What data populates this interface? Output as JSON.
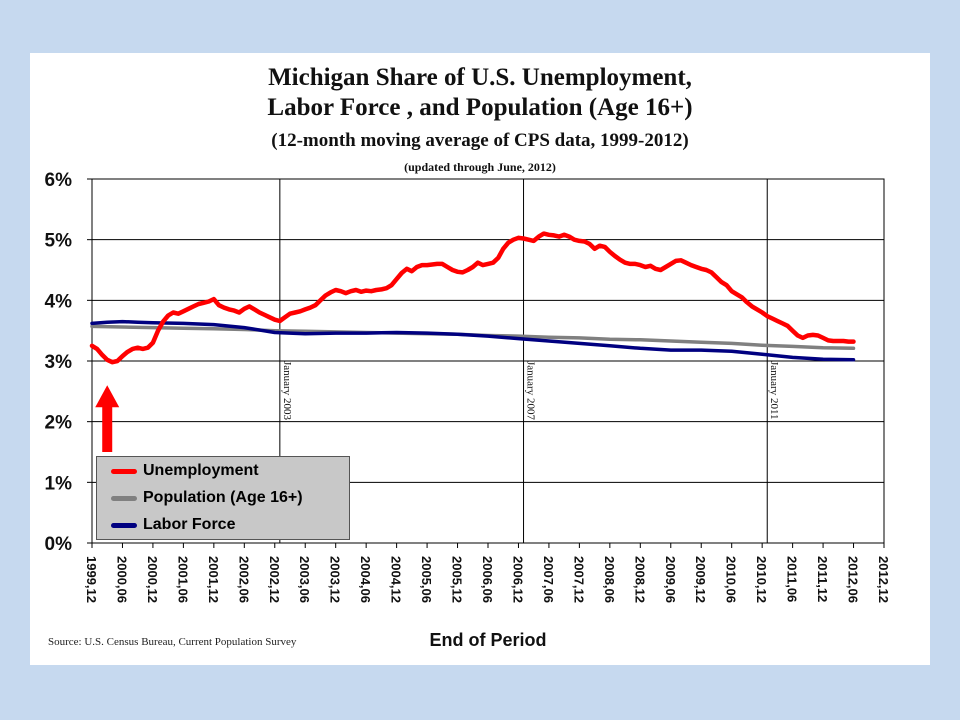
{
  "header": {
    "title_line1": "Michigan Share of U.S. Unemployment,",
    "title_line2": "Labor Force , and Population (Age 16+)",
    "subtitle": "(12-month moving average of CPS data, 1999-2012)",
    "updated": "(updated through June, 2012)"
  },
  "source": "Source: U.S. Census Bureau, Current Population Survey",
  "legend": {
    "items": [
      {
        "label": "Unemployment",
        "color": "#ff0000"
      },
      {
        "label": "Population (Age 16+)",
        "color": "#808080"
      },
      {
        "label": "Labor Force",
        "color": "#000080"
      }
    ]
  },
  "chart_data": {
    "type": "line",
    "title": "Michigan Share of U.S. Unemployment, Labor Force , and Population (Age 16+)",
    "subtitle": "(12-month moving average of CPS data, 1999-2012)",
    "xlabel": "End of Period",
    "ylabel": "",
    "ylim": [
      0,
      6
    ],
    "yticks": [
      "0%",
      "1%",
      "2%",
      "3%",
      "4%",
      "5%",
      "6%"
    ],
    "xticks": [
      "1999,12",
      "2000,06",
      "2000,12",
      "2001,06",
      "2001,12",
      "2002,06",
      "2002,12",
      "2003,06",
      "2003,12",
      "2004,06",
      "2004,12",
      "2005,06",
      "2005,12",
      "2006,06",
      "2006,12",
      "2007,06",
      "2007,12",
      "2008,06",
      "2008,12",
      "2009,06",
      "2009,12",
      "2010,06",
      "2010,12",
      "2011,06",
      "2011,12",
      "2012,06",
      "2012,12"
    ],
    "grid": true,
    "legend_position": "bottom-left",
    "annotations": [
      {
        "label": "January 2003",
        "x": "2003,01"
      },
      {
        "label": "January 2007",
        "x": "2007,01"
      },
      {
        "label": "January 2011",
        "x": "2011,01"
      }
    ],
    "arrow": {
      "x": "2000,03",
      "y_from": 1.5,
      "y_to": 2.6,
      "color": "#ff0000"
    },
    "series": [
      {
        "name": "Unemployment",
        "color": "#ff0000",
        "points": [
          [
            "1999,12",
            3.25
          ],
          [
            "2000,01",
            3.2
          ],
          [
            "2000,02",
            3.1
          ],
          [
            "2000,03",
            3.02
          ],
          [
            "2000,04",
            2.98
          ],
          [
            "2000,05",
            3.0
          ],
          [
            "2000,06",
            3.08
          ],
          [
            "2000,07",
            3.15
          ],
          [
            "2000,08",
            3.2
          ],
          [
            "2000,09",
            3.22
          ],
          [
            "2000,10",
            3.2
          ],
          [
            "2000,11",
            3.22
          ],
          [
            "2000,12",
            3.3
          ],
          [
            "2001,01",
            3.5
          ],
          [
            "2001,02",
            3.65
          ],
          [
            "2001,03",
            3.75
          ],
          [
            "2001,04",
            3.8
          ],
          [
            "2001,05",
            3.78
          ],
          [
            "2001,06",
            3.82
          ],
          [
            "2001,07",
            3.86
          ],
          [
            "2001,08",
            3.9
          ],
          [
            "2001,09",
            3.94
          ],
          [
            "2001,10",
            3.96
          ],
          [
            "2001,11",
            3.98
          ],
          [
            "2001,12",
            4.02
          ],
          [
            "2002,01",
            3.92
          ],
          [
            "2002,02",
            3.88
          ],
          [
            "2002,03",
            3.85
          ],
          [
            "2002,04",
            3.83
          ],
          [
            "2002,05",
            3.8
          ],
          [
            "2002,06",
            3.86
          ],
          [
            "2002,07",
            3.9
          ],
          [
            "2002,08",
            3.85
          ],
          [
            "2002,09",
            3.8
          ],
          [
            "2002,10",
            3.76
          ],
          [
            "2002,11",
            3.72
          ],
          [
            "2002,12",
            3.68
          ],
          [
            "2003,01",
            3.66
          ],
          [
            "2003,02",
            3.72
          ],
          [
            "2003,03",
            3.78
          ],
          [
            "2003,04",
            3.8
          ],
          [
            "2003,05",
            3.82
          ],
          [
            "2003,06",
            3.85
          ],
          [
            "2003,07",
            3.88
          ],
          [
            "2003,08",
            3.92
          ],
          [
            "2003,09",
            4.0
          ],
          [
            "2003,10",
            4.08
          ],
          [
            "2003,11",
            4.13
          ],
          [
            "2003,12",
            4.17
          ],
          [
            "2004,01",
            4.15
          ],
          [
            "2004,02",
            4.12
          ],
          [
            "2004,03",
            4.15
          ],
          [
            "2004,04",
            4.17
          ],
          [
            "2004,05",
            4.14
          ],
          [
            "2004,06",
            4.16
          ],
          [
            "2004,07",
            4.15
          ],
          [
            "2004,08",
            4.17
          ],
          [
            "2004,09",
            4.18
          ],
          [
            "2004,10",
            4.2
          ],
          [
            "2004,11",
            4.25
          ],
          [
            "2004,12",
            4.35
          ],
          [
            "2005,01",
            4.45
          ],
          [
            "2005,02",
            4.52
          ],
          [
            "2005,03",
            4.48
          ],
          [
            "2005,04",
            4.55
          ],
          [
            "2005,05",
            4.58
          ],
          [
            "2005,06",
            4.58
          ],
          [
            "2005,07",
            4.59
          ],
          [
            "2005,08",
            4.6
          ],
          [
            "2005,09",
            4.6
          ],
          [
            "2005,10",
            4.55
          ],
          [
            "2005,11",
            4.5
          ],
          [
            "2005,12",
            4.47
          ],
          [
            "2006,01",
            4.46
          ],
          [
            "2006,02",
            4.5
          ],
          [
            "2006,03",
            4.55
          ],
          [
            "2006,04",
            4.62
          ],
          [
            "2006,05",
            4.58
          ],
          [
            "2006,06",
            4.6
          ],
          [
            "2006,07",
            4.62
          ],
          [
            "2006,08",
            4.7
          ],
          [
            "2006,09",
            4.85
          ],
          [
            "2006,10",
            4.95
          ],
          [
            "2006,11",
            5.0
          ],
          [
            "2006,12",
            5.03
          ],
          [
            "2007,01",
            5.02
          ],
          [
            "2007,02",
            5.0
          ],
          [
            "2007,03",
            4.98
          ],
          [
            "2007,04",
            5.05
          ],
          [
            "2007,05",
            5.1
          ],
          [
            "2007,06",
            5.08
          ],
          [
            "2007,07",
            5.07
          ],
          [
            "2007,08",
            5.05
          ],
          [
            "2007,09",
            5.08
          ],
          [
            "2007,10",
            5.05
          ],
          [
            "2007,11",
            5.0
          ],
          [
            "2007,12",
            4.98
          ],
          [
            "2008,01",
            4.97
          ],
          [
            "2008,02",
            4.93
          ],
          [
            "2008,03",
            4.85
          ],
          [
            "2008,04",
            4.9
          ],
          [
            "2008,05",
            4.88
          ],
          [
            "2008,06",
            4.8
          ],
          [
            "2008,07",
            4.73
          ],
          [
            "2008,08",
            4.67
          ],
          [
            "2008,09",
            4.62
          ],
          [
            "2008,10",
            4.6
          ],
          [
            "2008,11",
            4.6
          ],
          [
            "2008,12",
            4.58
          ],
          [
            "2009,01",
            4.55
          ],
          [
            "2009,02",
            4.57
          ],
          [
            "2009,03",
            4.52
          ],
          [
            "2009,04",
            4.5
          ],
          [
            "2009,05",
            4.55
          ],
          [
            "2009,06",
            4.6
          ],
          [
            "2009,07",
            4.65
          ],
          [
            "2009,08",
            4.66
          ],
          [
            "2009,09",
            4.62
          ],
          [
            "2009,10",
            4.58
          ],
          [
            "2009,11",
            4.55
          ],
          [
            "2009,12",
            4.52
          ],
          [
            "2010,01",
            4.5
          ],
          [
            "2010,02",
            4.46
          ],
          [
            "2010,03",
            4.38
          ],
          [
            "2010,04",
            4.3
          ],
          [
            "2010,05",
            4.25
          ],
          [
            "2010,06",
            4.15
          ],
          [
            "2010,07",
            4.1
          ],
          [
            "2010,08",
            4.05
          ],
          [
            "2010,09",
            3.97
          ],
          [
            "2010,10",
            3.9
          ],
          [
            "2010,11",
            3.85
          ],
          [
            "2010,12",
            3.8
          ],
          [
            "2011,01",
            3.74
          ],
          [
            "2011,02",
            3.7
          ],
          [
            "2011,03",
            3.66
          ],
          [
            "2011,04",
            3.62
          ],
          [
            "2011,05",
            3.58
          ],
          [
            "2011,06",
            3.5
          ],
          [
            "2011,07",
            3.42
          ],
          [
            "2011,08",
            3.38
          ],
          [
            "2011,09",
            3.42
          ],
          [
            "2011,10",
            3.43
          ],
          [
            "2011,11",
            3.42
          ],
          [
            "2011,12",
            3.38
          ],
          [
            "2012,01",
            3.34
          ],
          [
            "2012,02",
            3.33
          ],
          [
            "2012,03",
            3.33
          ],
          [
            "2012,04",
            3.33
          ],
          [
            "2012,05",
            3.32
          ],
          [
            "2012,06",
            3.32
          ]
        ]
      },
      {
        "name": "Population (Age 16+)",
        "color": "#808080",
        "points": [
          [
            "1999,12",
            3.57
          ],
          [
            "2000,06",
            3.56
          ],
          [
            "2000,12",
            3.55
          ],
          [
            "2001,06",
            3.54
          ],
          [
            "2001,12",
            3.53
          ],
          [
            "2002,06",
            3.52
          ],
          [
            "2002,12",
            3.5
          ],
          [
            "2003,06",
            3.49
          ],
          [
            "2003,12",
            3.48
          ],
          [
            "2004,06",
            3.47
          ],
          [
            "2004,12",
            3.46
          ],
          [
            "2005,06",
            3.45
          ],
          [
            "2005,12",
            3.44
          ],
          [
            "2006,06",
            3.42
          ],
          [
            "2006,12",
            3.41
          ],
          [
            "2007,06",
            3.39
          ],
          [
            "2007,12",
            3.38
          ],
          [
            "2008,06",
            3.36
          ],
          [
            "2008,12",
            3.35
          ],
          [
            "2009,06",
            3.33
          ],
          [
            "2009,12",
            3.31
          ],
          [
            "2010,06",
            3.29
          ],
          [
            "2010,12",
            3.26
          ],
          [
            "2011,06",
            3.24
          ],
          [
            "2011,12",
            3.22
          ],
          [
            "2012,06",
            3.21
          ]
        ]
      },
      {
        "name": "Labor Force",
        "color": "#000080",
        "points": [
          [
            "1999,12",
            3.62
          ],
          [
            "2000,03",
            3.64
          ],
          [
            "2000,06",
            3.65
          ],
          [
            "2000,09",
            3.64
          ],
          [
            "2000,12",
            3.63
          ],
          [
            "2001,06",
            3.62
          ],
          [
            "2001,12",
            3.6
          ],
          [
            "2002,06",
            3.55
          ],
          [
            "2002,12",
            3.47
          ],
          [
            "2003,06",
            3.45
          ],
          [
            "2003,12",
            3.46
          ],
          [
            "2004,06",
            3.46
          ],
          [
            "2004,12",
            3.47
          ],
          [
            "2005,06",
            3.46
          ],
          [
            "2005,12",
            3.44
          ],
          [
            "2006,06",
            3.41
          ],
          [
            "2006,12",
            3.37
          ],
          [
            "2007,06",
            3.33
          ],
          [
            "2007,12",
            3.29
          ],
          [
            "2008,06",
            3.25
          ],
          [
            "2008,12",
            3.21
          ],
          [
            "2009,06",
            3.18
          ],
          [
            "2009,12",
            3.18
          ],
          [
            "2010,06",
            3.16
          ],
          [
            "2010,12",
            3.11
          ],
          [
            "2011,06",
            3.06
          ],
          [
            "2011,12",
            3.03
          ],
          [
            "2012,06",
            3.02
          ]
        ]
      }
    ]
  }
}
